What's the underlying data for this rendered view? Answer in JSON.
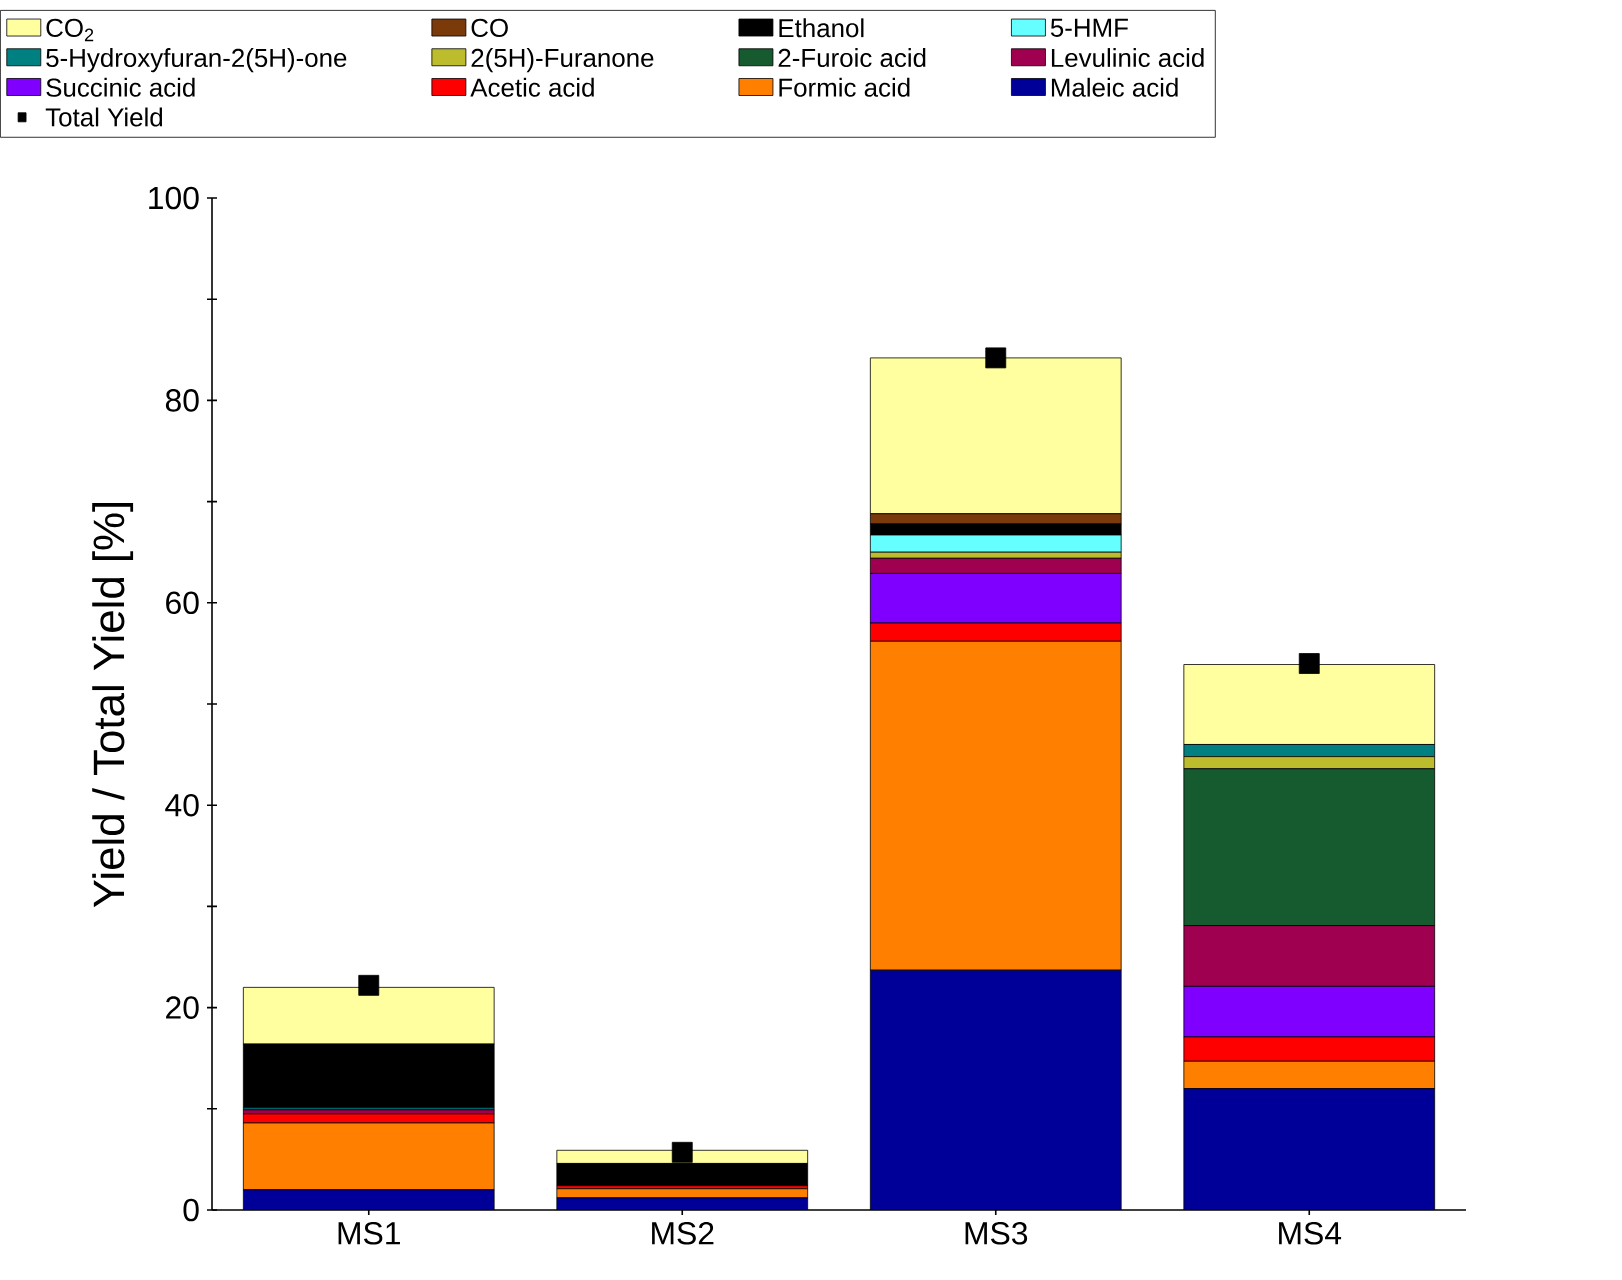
{
  "chart_data": {
    "type": "bar",
    "stacked": true,
    "ylabel": "Yield / Total Yield [%]",
    "categories": [
      "MS1",
      "MS2",
      "MS3",
      "MS4"
    ],
    "ylim": [
      0,
      100
    ],
    "yticks": [
      0,
      {
        "value": 10,
        "label": null
      },
      20,
      {
        "value": 30,
        "label": null
      },
      40,
      {
        "value": 50,
        "label": null
      },
      60,
      {
        "value": 70,
        "label": null
      },
      80,
      {
        "value": 90,
        "label": null
      },
      100
    ],
    "legend": "top",
    "series": [
      {
        "name": "Maleic acid",
        "color": "#000099",
        "values": [
          2.0,
          1.2,
          23.7,
          12.0
        ]
      },
      {
        "name": "Formic acid",
        "color": "#ff8000",
        "values": [
          6.6,
          0.9,
          32.5,
          2.7
        ]
      },
      {
        "name": "Acetic acid",
        "color": "#ff0000",
        "values": [
          0.9,
          0.3,
          1.8,
          2.4
        ]
      },
      {
        "name": "Succinic acid",
        "color": "#8000ff",
        "values": [
          0,
          0,
          4.9,
          5.0
        ]
      },
      {
        "name": "Levulinic acid",
        "color": "#a00050",
        "values": [
          0.4,
          0,
          1.5,
          6.0
        ]
      },
      {
        "name": "2-Furoic acid",
        "color": "#165a2f",
        "values": [
          0,
          0,
          0,
          15.5
        ]
      },
      {
        "name": "2(5H)-Furanone",
        "color": "#bcbc2c",
        "values": [
          0,
          0,
          0.6,
          1.2
        ]
      },
      {
        "name": "5-Hydroxyfuran-2(5H)-one",
        "color": "#008080",
        "values": [
          0.2,
          0,
          0,
          1.2
        ]
      },
      {
        "name": "5-HMF",
        "color": "#66ffff",
        "values": [
          0,
          0,
          1.7,
          0
        ]
      },
      {
        "name": "Ethanol",
        "color": "#000000",
        "values": [
          6.3,
          2.2,
          1.1,
          0
        ]
      },
      {
        "name": "CO",
        "color": "#7a3a0a",
        "values": [
          0,
          0,
          1.0,
          0
        ]
      },
      {
        "name": "CO$_{2}$",
        "color": "#ffffa0",
        "values": [
          5.6,
          1.3,
          15.4,
          7.9
        ]
      },
      {
        "name": "Total Yield",
        "type": "scatter",
        "marker": "square",
        "color": "#000000",
        "x": [
          "MS1",
          "MS2",
          "MS3",
          "MS4"
        ],
        "values": [
          22.2,
          5.7,
          84.2,
          54.0
        ]
      }
    ]
  }
}
